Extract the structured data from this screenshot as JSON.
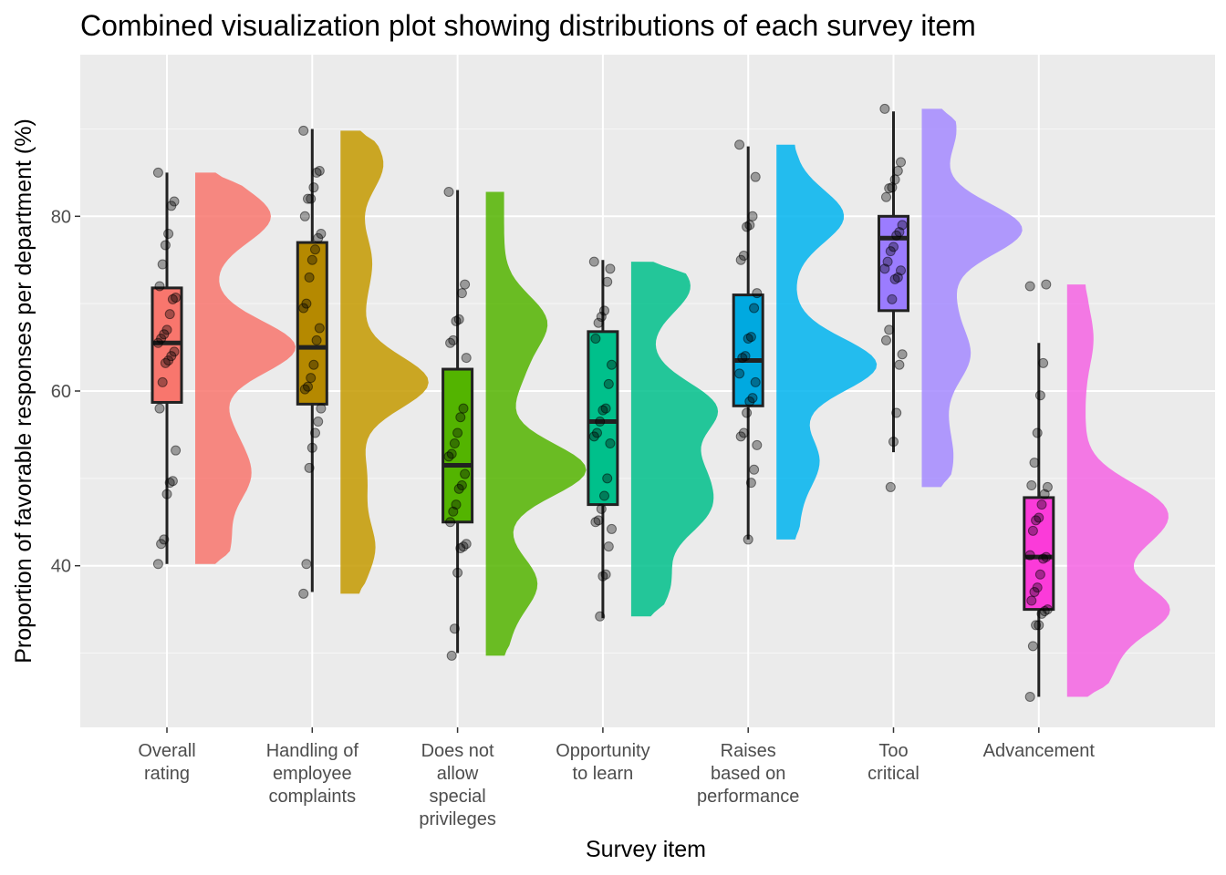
{
  "chart_data": {
    "type": "raincloud",
    "title": "Combined visualization plot showing distributions of each survey item",
    "xlabel": "Survey item",
    "ylabel": "Proportion of favorable responses per department (%)",
    "ylim": [
      21.5,
      98.5
    ],
    "yticks": [
      40,
      60,
      80
    ],
    "grid": true,
    "legend": "none",
    "categories": [
      {
        "label": [
          "Overall",
          "rating"
        ],
        "color": "#F8766D",
        "box_color": "#F8766D",
        "median": 65.5,
        "q1": 58.7,
        "q3": 71.8,
        "whisker_low": 40.2,
        "whisker_high": 85.0,
        "points": [
          85.0,
          81.7,
          81.2,
          78.0,
          76.7,
          74.5,
          72.0,
          70.7,
          70.5,
          68.8,
          67.0,
          66.5,
          66.0,
          65.5,
          64.5,
          64.0,
          63.5,
          63.2,
          61.0,
          58.0,
          53.2,
          49.7,
          49.5,
          48.2,
          43.0,
          42.5,
          40.2
        ],
        "density_peaks": [
          [
            80,
            0.7
          ],
          [
            65,
            1.0
          ],
          [
            55,
            0.2
          ],
          [
            50,
            0.4
          ],
          [
            46,
            0.0
          ],
          [
            42.5,
            0.2
          ]
        ]
      },
      {
        "label": [
          "Handling of",
          "employee",
          "complaints"
        ],
        "color": "#C49A00",
        "box_color": "#B58900",
        "median": 65.0,
        "q1": 58.5,
        "q3": 77.0,
        "whisker_low": 37.0,
        "whisker_high": 90.0,
        "points": [
          89.8,
          85.2,
          85.0,
          83.3,
          82.0,
          82.0,
          80.0,
          78.0,
          77.5,
          76.2,
          75.0,
          73.0,
          70.0,
          69.5,
          67.2,
          65.8,
          63.0,
          61.5,
          60.5,
          60.2,
          58.0,
          56.5,
          55.2,
          53.5,
          51.2,
          40.2,
          36.8
        ],
        "density_peaks": [
          [
            86,
            0.3
          ],
          [
            75,
            0.15
          ],
          [
            70,
            0.05
          ],
          [
            61,
            0.85
          ],
          [
            50,
            0.1
          ],
          [
            42,
            0.2
          ]
        ]
      },
      {
        "label": [
          "Does not",
          "allow",
          "special",
          "privileges"
        ],
        "color": "#53B400",
        "box_color": "#53B400",
        "median": 51.5,
        "q1": 45.0,
        "q3": 62.5,
        "whisker_low": 30.0,
        "whisker_high": 83.0,
        "points": [
          82.8,
          72.2,
          71.2,
          68.2,
          68.0,
          65.8,
          65.5,
          63.8,
          58.0,
          57.0,
          55.2,
          54.0,
          52.8,
          52.5,
          50.5,
          49.2,
          48.8,
          47.0,
          46.2,
          45.0,
          42.5,
          42.2,
          42.0,
          39.2,
          32.8,
          29.7
        ],
        "density_peaks": [
          [
            68,
            0.5
          ],
          [
            62,
            0.2
          ],
          [
            51,
            1.0
          ],
          [
            38,
            0.4
          ],
          [
            32,
            0.05
          ]
        ]
      },
      {
        "label": [
          "Opportunity",
          "to learn"
        ],
        "color": "#00C08B",
        "box_color": "#00C08B",
        "median": 56.5,
        "q1": 47.0,
        "q3": 66.8,
        "whisker_low": 34.0,
        "whisker_high": 75.0,
        "points": [
          74.8,
          74.0,
          72.5,
          69.2,
          68.5,
          67.8,
          66.0,
          63.0,
          60.8,
          58.0,
          57.8,
          56.5,
          55.2,
          54.8,
          54.0,
          50.0,
          48.0,
          46.5,
          45.2,
          45.0,
          44.2,
          42.2,
          39.0,
          38.8,
          34.2
        ],
        "density_peaks": [
          [
            72,
            0.5
          ],
          [
            58,
            0.8
          ],
          [
            51,
            0.5
          ],
          [
            46,
            0.6
          ],
          [
            38,
            0.25
          ]
        ]
      },
      {
        "label": [
          "Raises",
          "based on",
          "performance"
        ],
        "color": "#00B4EF",
        "box_color": "#00A9E0",
        "median": 63.5,
        "q1": 58.3,
        "q3": 71.0,
        "whisker_low": 43.0,
        "whisker_high": 88.0,
        "points": [
          88.2,
          84.5,
          80.0,
          79.0,
          78.8,
          75.5,
          75.0,
          71.2,
          69.5,
          66.2,
          66.0,
          64.0,
          63.8,
          62.0,
          61.0,
          59.2,
          58.8,
          57.5,
          55.2,
          54.8,
          53.8,
          51.0,
          49.5,
          43.0
        ],
        "density_peaks": [
          [
            80,
            0.6
          ],
          [
            63,
            1.0
          ],
          [
            52,
            0.3
          ],
          [
            45,
            0.05
          ]
        ]
      },
      {
        "label": [
          "Too",
          "critical"
        ],
        "color": "#A58AFF",
        "box_color": "#9B7CFF",
        "median": 77.5,
        "q1": 69.2,
        "q3": 80.0,
        "whisker_low": 53.0,
        "whisker_high": 92.0,
        "points": [
          92.3,
          86.2,
          85.2,
          84.2,
          83.3,
          83.2,
          82.2,
          79.0,
          78.2,
          77.8,
          76.5,
          76.0,
          74.8,
          74.0,
          73.8,
          73.0,
          72.8,
          70.5,
          67.0,
          65.8,
          64.2,
          63.0,
          57.5,
          54.2,
          49.0
        ],
        "density_peaks": [
          [
            90,
            0.2
          ],
          [
            78.5,
            1.0
          ],
          [
            70,
            0.15
          ],
          [
            64,
            0.35
          ],
          [
            57,
            0.05
          ],
          [
            52,
            0.15
          ]
        ]
      },
      {
        "label": [
          "Advancement"
        ],
        "color": "#F564E3",
        "box_color": "#FB3BD9",
        "median": 41.0,
        "q1": 35.0,
        "q3": 47.8,
        "whisker_low": 25.0,
        "whisker_high": 65.5,
        "points": [
          72.0,
          72.2,
          63.2,
          59.5,
          55.2,
          51.8,
          49.2,
          49.0,
          48.2,
          47.0,
          45.5,
          45.2,
          44.0,
          41.2,
          41.0,
          40.8,
          39.0,
          37.5,
          37.0,
          36.0,
          35.0,
          34.8,
          34.5,
          33.2,
          33.2,
          30.8,
          25.0
        ],
        "density_peaks": [
          [
            66,
            0.1
          ],
          [
            47,
            0.75
          ],
          [
            43,
            0.5
          ],
          [
            35,
            1.0
          ],
          [
            28,
            0.3
          ]
        ]
      }
    ]
  }
}
